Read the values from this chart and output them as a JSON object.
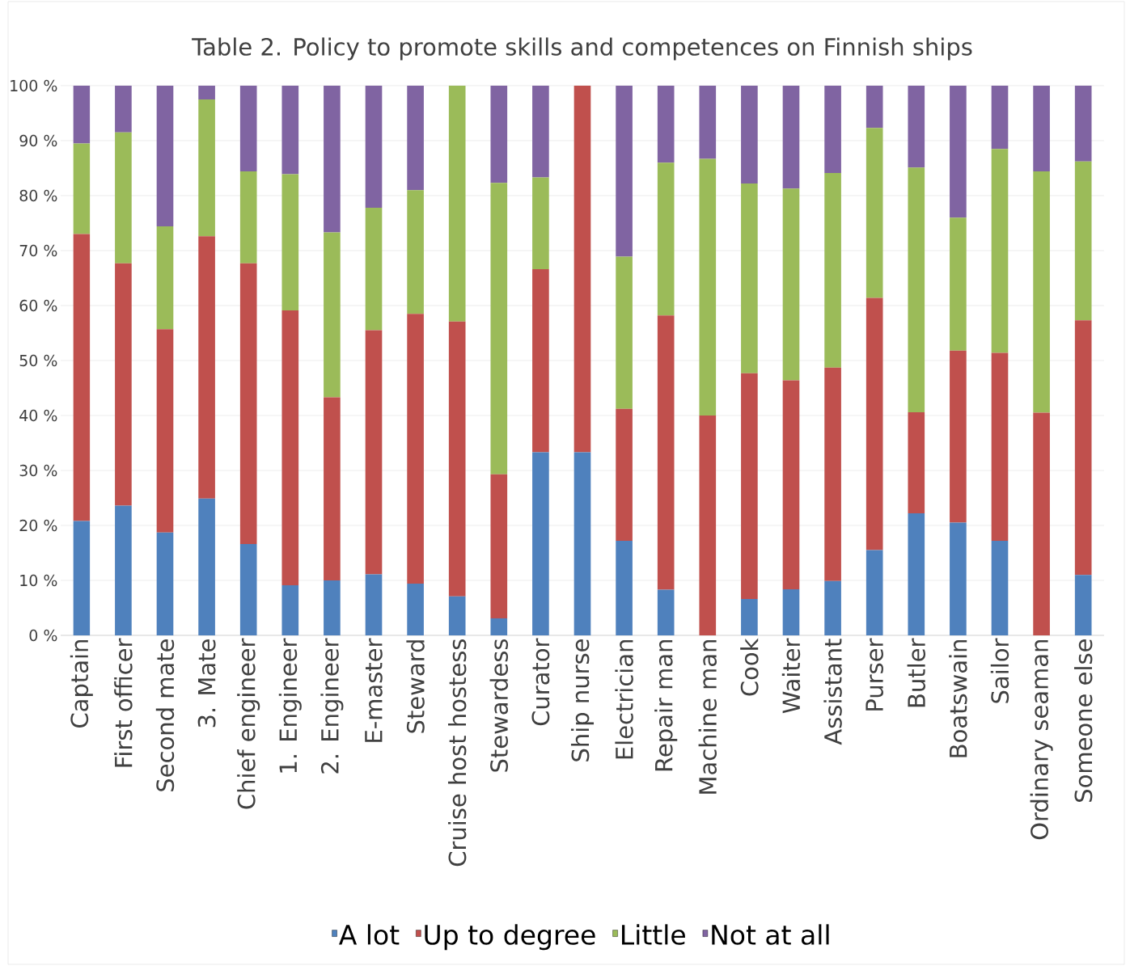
{
  "chart_data": {
    "type": "bar",
    "title": "Table 2. Policy to promote skills and competences on Finnish ships",
    "stacked": true,
    "grid": "y",
    "legend": "bottom",
    "categories": [
      "Captain",
      "First officer",
      "Second mate",
      "3. Mate",
      "Chief engineer",
      "1. Engineer",
      "2. Engineer",
      "E-master",
      "Steward",
      "Cruise host hostess",
      "Stewardess",
      "Curator",
      "Ship nurse",
      "Electrician",
      "Repair man",
      "Machine man",
      "Cook",
      "Waiter",
      "Assistant",
      "Purser",
      "Butler",
      "Boatswain",
      "Sailor",
      "Ordinary seaman",
      "Someone else"
    ],
    "ylim": [
      0,
      100
    ],
    "yticks": [
      {
        "value": 0,
        "label": "0 %"
      },
      {
        "value": 10,
        "label": "10 %"
      },
      {
        "value": 20,
        "label": "20 %"
      },
      {
        "value": 30,
        "label": "30 %"
      },
      {
        "value": 40,
        "label": "40 %"
      },
      {
        "value": 50,
        "label": "50 %"
      },
      {
        "value": 60,
        "label": "60 %"
      },
      {
        "value": 70,
        "label": "70 %"
      },
      {
        "value": 80,
        "label": "80 %"
      },
      {
        "value": 90,
        "label": "90 %"
      },
      {
        "value": 100,
        "label": "100 %"
      }
    ],
    "series": [
      {
        "name": "A lot",
        "color": "#4f81bd",
        "values": [
          20.8,
          23.6,
          18.7,
          24.9,
          16.6,
          9.1,
          10.0,
          11.1,
          9.4,
          7.1,
          3.1,
          33.3,
          33.3,
          17.2,
          8.3,
          0,
          6.6,
          8.4,
          9.9,
          15.5,
          22.2,
          20.5,
          17.2,
          0,
          11.0
        ]
      },
      {
        "name": "Up to degree",
        "color": "#c0504d",
        "values": [
          52.2,
          44.1,
          37.0,
          47.7,
          51.1,
          50.0,
          33.3,
          44.4,
          49.1,
          50.0,
          26.2,
          33.3,
          66.7,
          24.0,
          49.9,
          40.0,
          41.1,
          38.0,
          38.8,
          45.9,
          18.4,
          31.3,
          34.2,
          40.5,
          46.3
        ]
      },
      {
        "name": "Little",
        "color": "#9bbb59",
        "values": [
          16.5,
          23.8,
          18.7,
          24.9,
          16.7,
          24.8,
          30.0,
          22.3,
          22.5,
          42.9,
          53.0,
          16.7,
          0,
          27.7,
          27.8,
          46.7,
          34.5,
          34.9,
          35.4,
          30.9,
          44.5,
          24.2,
          37.1,
          43.9,
          28.9
        ]
      },
      {
        "name": "Not at all",
        "color": "#8064a2",
        "values": [
          10.5,
          8.5,
          25.6,
          2.5,
          15.6,
          16.1,
          26.7,
          22.2,
          19.0,
          0,
          17.7,
          16.7,
          0,
          31.1,
          14.0,
          13.3,
          17.8,
          18.7,
          15.9,
          7.7,
          14.9,
          24.0,
          11.5,
          15.6,
          13.8
        ]
      }
    ]
  }
}
